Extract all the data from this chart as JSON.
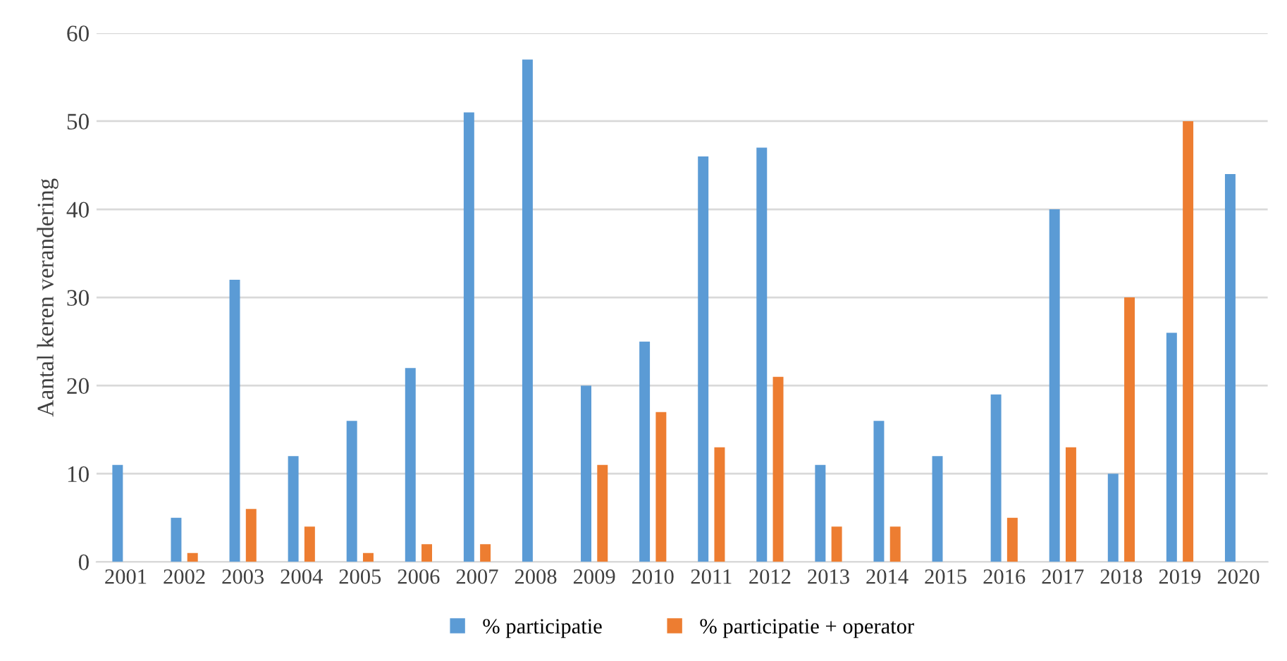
{
  "chart_data": {
    "type": "bar",
    "ylabel": "Aantal keren verandering",
    "categories": [
      "2001",
      "2002",
      "2003",
      "2004",
      "2005",
      "2006",
      "2007",
      "2008",
      "2009",
      "2010",
      "2011",
      "2012",
      "2013",
      "2014",
      "2015",
      "2016",
      "2017",
      "2018",
      "2019",
      "2020"
    ],
    "series": [
      {
        "name": "% participatie",
        "color": "#5b9bd5",
        "values": [
          11,
          5,
          32,
          12,
          16,
          22,
          51,
          57,
          20,
          25,
          46,
          47,
          11,
          16,
          12,
          19,
          40,
          10,
          26,
          44
        ]
      },
      {
        "name": "% participatie + operator",
        "color": "#ed7d31",
        "values": [
          0,
          1,
          6,
          4,
          1,
          2,
          2,
          0,
          11,
          17,
          13,
          21,
          4,
          4,
          0,
          5,
          13,
          30,
          50,
          0
        ]
      }
    ],
    "ylim": [
      0,
      60
    ],
    "yticks": [
      0,
      10,
      20,
      30,
      40,
      50,
      60
    ],
    "grid": "y",
    "legend": "bottom"
  }
}
